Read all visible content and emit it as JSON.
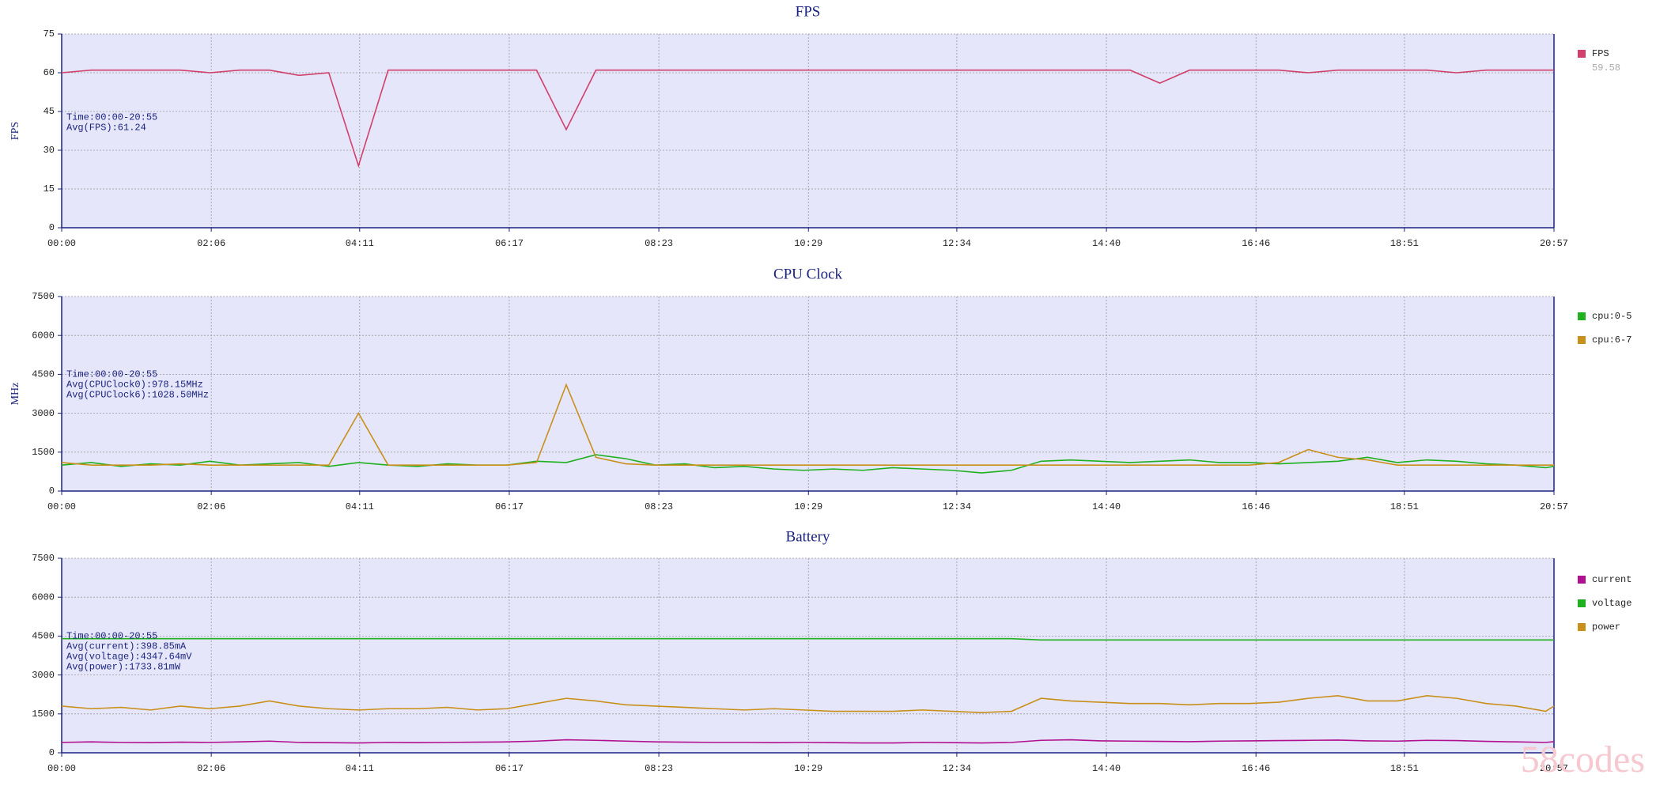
{
  "chart_data": [
    {
      "type": "line",
      "title": "FPS",
      "ylabel": "FPS",
      "annotations": [
        "Time:00:00-20:55",
        "Avg(FPS):61.24"
      ],
      "x": [
        0,
        25,
        50,
        75,
        100,
        125,
        150,
        175,
        200,
        225,
        250,
        275,
        300,
        325,
        350,
        375,
        400,
        425,
        450,
        475,
        500,
        525,
        550,
        575,
        600,
        625,
        650,
        675,
        700,
        725,
        750,
        775,
        800,
        825,
        850,
        875,
        900,
        925,
        950,
        975,
        1000,
        1025,
        1050,
        1075,
        1100,
        1125,
        1150,
        1175,
        1200,
        1225,
        1250,
        1257
      ],
      "xlim": [
        0,
        1257
      ],
      "xticks": [
        {
          "value": 0,
          "label": "00:00"
        },
        {
          "value": 126,
          "label": "02:06"
        },
        {
          "value": 251,
          "label": "04:11"
        },
        {
          "value": 377,
          "label": "06:17"
        },
        {
          "value": 503,
          "label": "08:23"
        },
        {
          "value": 629,
          "label": "10:29"
        },
        {
          "value": 754,
          "label": "12:34"
        },
        {
          "value": 880,
          "label": "14:40"
        },
        {
          "value": 1006,
          "label": "16:46"
        },
        {
          "value": 1131,
          "label": "18:51"
        },
        {
          "value": 1257,
          "label": "20:57"
        }
      ],
      "ylim": [
        0,
        75
      ],
      "yticks": [
        0,
        15,
        30,
        45,
        60,
        75
      ],
      "grid": true,
      "series": [
        {
          "name": "FPS",
          "color": "#d0406a",
          "legend_label": "59.58",
          "values": [
            60,
            61,
            61,
            61,
            61,
            60,
            61,
            61,
            59,
            60,
            24,
            61,
            61,
            61,
            61,
            61,
            61,
            38,
            61,
            61,
            61,
            61,
            61,
            61,
            61,
            61,
            61,
            61,
            61,
            61,
            61,
            61,
            61,
            61,
            61,
            61,
            61,
            56,
            61,
            61,
            61,
            61,
            60,
            61,
            61,
            61,
            61,
            60,
            61,
            61,
            61,
            61
          ]
        }
      ]
    },
    {
      "type": "line",
      "title": "CPU Clock",
      "ylabel": "MHz",
      "annotations": [
        "Time:00:00-20:55",
        "Avg(CPUClock0):978.15MHz",
        "Avg(CPUClock6):1028.50MHz"
      ],
      "x": [
        0,
        25,
        50,
        75,
        100,
        125,
        150,
        175,
        200,
        225,
        250,
        275,
        300,
        325,
        350,
        375,
        400,
        425,
        450,
        475,
        500,
        525,
        550,
        575,
        600,
        625,
        650,
        675,
        700,
        725,
        750,
        775,
        800,
        825,
        850,
        875,
        900,
        925,
        950,
        975,
        1000,
        1025,
        1050,
        1075,
        1100,
        1125,
        1150,
        1175,
        1200,
        1225,
        1250,
        1257
      ],
      "xlim": [
        0,
        1257
      ],
      "xticks": [
        {
          "value": 0,
          "label": "00:00"
        },
        {
          "value": 126,
          "label": "02:06"
        },
        {
          "value": 251,
          "label": "04:11"
        },
        {
          "value": 377,
          "label": "06:17"
        },
        {
          "value": 503,
          "label": "08:23"
        },
        {
          "value": 629,
          "label": "10:29"
        },
        {
          "value": 754,
          "label": "12:34"
        },
        {
          "value": 880,
          "label": "14:40"
        },
        {
          "value": 1006,
          "label": "16:46"
        },
        {
          "value": 1131,
          "label": "18:51"
        },
        {
          "value": 1257,
          "label": "20:57"
        }
      ],
      "ylim": [
        0,
        7500
      ],
      "yticks": [
        0,
        1500,
        3000,
        4500,
        6000,
        7500
      ],
      "grid": true,
      "series": [
        {
          "name": "cpu:0-5",
          "color": "#1fb01f",
          "values": [
            1000,
            1100,
            950,
            1050,
            1000,
            1150,
            1000,
            1050,
            1100,
            950,
            1100,
            1000,
            950,
            1050,
            1000,
            1000,
            1150,
            1100,
            1400,
            1250,
            1000,
            1050,
            900,
            950,
            850,
            800,
            850,
            800,
            900,
            850,
            800,
            700,
            800,
            1150,
            1200,
            1150,
            1100,
            1150,
            1200,
            1100,
            1100,
            1050,
            1100,
            1150,
            1300,
            1100,
            1200,
            1150,
            1050,
            1000,
            900,
            950
          ]
        },
        {
          "name": "cpu:6-7",
          "color": "#c8901a",
          "values": [
            1100,
            1000,
            1000,
            1000,
            1050,
            1000,
            1000,
            1000,
            1000,
            1000,
            3000,
            1000,
            1000,
            1000,
            1000,
            1000,
            1100,
            4100,
            1300,
            1050,
            1000,
            1000,
            1000,
            1000,
            1000,
            1000,
            1000,
            1000,
            1000,
            1000,
            1000,
            1000,
            1000,
            1000,
            1000,
            1000,
            1000,
            1000,
            1000,
            1000,
            1000,
            1100,
            1600,
            1300,
            1200,
            1000,
            1000,
            1000,
            1000,
            1000,
            1000,
            1000
          ]
        }
      ]
    },
    {
      "type": "line",
      "title": "Battery",
      "annotations": [
        "Time:00:00-20:55",
        "Avg(current):398.85mA",
        "Avg(voltage):4347.64mV",
        "Avg(power):1733.81mW"
      ],
      "x": [
        0,
        25,
        50,
        75,
        100,
        125,
        150,
        175,
        200,
        225,
        250,
        275,
        300,
        325,
        350,
        375,
        400,
        425,
        450,
        475,
        500,
        525,
        550,
        575,
        600,
        625,
        650,
        675,
        700,
        725,
        750,
        775,
        800,
        825,
        850,
        875,
        900,
        925,
        950,
        975,
        1000,
        1025,
        1050,
        1075,
        1100,
        1125,
        1150,
        1175,
        1200,
        1225,
        1250,
        1257
      ],
      "xlim": [
        0,
        1257
      ],
      "xticks": [
        {
          "value": 0,
          "label": "00:00"
        },
        {
          "value": 126,
          "label": "02:06"
        },
        {
          "value": 251,
          "label": "04:11"
        },
        {
          "value": 377,
          "label": "06:17"
        },
        {
          "value": 503,
          "label": "08:23"
        },
        {
          "value": 629,
          "label": "10:29"
        },
        {
          "value": 754,
          "label": "12:34"
        },
        {
          "value": 880,
          "label": "14:40"
        },
        {
          "value": 1006,
          "label": "16:46"
        },
        {
          "value": 1131,
          "label": "18:51"
        },
        {
          "value": 1257,
          "label": "20:57"
        }
      ],
      "ylim": [
        0,
        7500
      ],
      "yticks": [
        0,
        1500,
        3000,
        4500,
        6000,
        7500
      ],
      "grid": true,
      "series": [
        {
          "name": "current",
          "color": "#b0108f",
          "values": [
            400,
            420,
            400,
            390,
            410,
            400,
            420,
            450,
            400,
            390,
            380,
            400,
            390,
            400,
            410,
            420,
            450,
            500,
            480,
            450,
            420,
            410,
            400,
            400,
            390,
            400,
            390,
            380,
            380,
            400,
            390,
            380,
            400,
            480,
            500,
            460,
            450,
            440,
            430,
            450,
            460,
            470,
            480,
            490,
            460,
            450,
            480,
            470,
            440,
            420,
            400,
            430
          ]
        },
        {
          "name": "voltage",
          "color": "#1fb01f",
          "values": [
            4400,
            4400,
            4400,
            4400,
            4400,
            4400,
            4400,
            4400,
            4400,
            4400,
            4400,
            4400,
            4400,
            4400,
            4400,
            4400,
            4400,
            4400,
            4400,
            4400,
            4400,
            4400,
            4400,
            4400,
            4400,
            4400,
            4400,
            4400,
            4400,
            4400,
            4400,
            4400,
            4400,
            4350,
            4350,
            4350,
            4350,
            4350,
            4350,
            4350,
            4350,
            4350,
            4350,
            4350,
            4350,
            4350,
            4350,
            4350,
            4350,
            4350,
            4350,
            4350
          ]
        },
        {
          "name": "power",
          "color": "#c8901a",
          "values": [
            1800,
            1700,
            1750,
            1650,
            1800,
            1700,
            1800,
            2000,
            1800,
            1700,
            1650,
            1700,
            1700,
            1750,
            1650,
            1700,
            1900,
            2100,
            2000,
            1850,
            1800,
            1750,
            1700,
            1650,
            1700,
            1650,
            1600,
            1600,
            1600,
            1650,
            1600,
            1550,
            1600,
            2100,
            2000,
            1950,
            1900,
            1900,
            1850,
            1900,
            1900,
            1950,
            2100,
            2200,
            2000,
            2000,
            2200,
            2100,
            1900,
            1800,
            1600,
            1800
          ]
        }
      ]
    }
  ],
  "watermark": "58codes"
}
